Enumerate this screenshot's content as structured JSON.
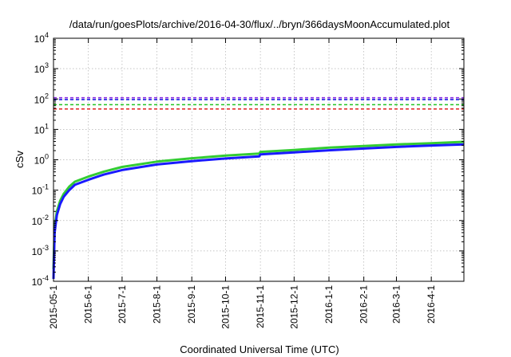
{
  "chart_data": {
    "type": "line",
    "title": "/data/run/goesPlots/archive/2016-04-30/flux/../bryn/366daysMoonAccumulated.plot",
    "xlabel": "Coordinated Universal Time (UTC)",
    "ylabel": "cSv",
    "yscale": "log",
    "ylim": [
      0.0001,
      10000
    ],
    "xlim": [
      "2015-05-01",
      "2016-04-30"
    ],
    "grid": true,
    "x_ticks": [
      "2015-05-1",
      "2015-6-1",
      "2015-7-1",
      "2015-8-1",
      "2015-9-1",
      "2015-10-1",
      "2015-11-1",
      "2015-12-1",
      "2016-1-1",
      "2016-2-1",
      "2016-3-1",
      "2016-4-1"
    ],
    "y_ticks": [
      {
        "value": 0.0001,
        "base": "10",
        "exp": "-4"
      },
      {
        "value": 0.001,
        "base": "10",
        "exp": "-3"
      },
      {
        "value": 0.01,
        "base": "10",
        "exp": "-2"
      },
      {
        "value": 0.1,
        "base": "10",
        "exp": "-1"
      },
      {
        "value": 1,
        "base": "10",
        "exp": "0"
      },
      {
        "value": 10,
        "base": "10",
        "exp": "1"
      },
      {
        "value": 100,
        "base": "10",
        "exp": "2"
      },
      {
        "value": 1000,
        "base": "10",
        "exp": "3"
      },
      {
        "value": 10000,
        "base": "10",
        "exp": "4"
      }
    ],
    "thresholds": [
      {
        "value": 110,
        "color": "#8a2be2"
      },
      {
        "value": 96,
        "color": "#1e1ee6"
      },
      {
        "value": 65,
        "color": "#22c322"
      },
      {
        "value": 47,
        "color": "#e02020"
      }
    ],
    "series": [
      {
        "color": "#33cc33",
        "x": [
          "2015-05-01",
          "2015-05-02",
          "2015-05-04",
          "2015-05-07",
          "2015-05-10",
          "2015-05-15",
          "2015-05-20",
          "2015-06-01",
          "2015-06-15",
          "2015-07-01",
          "2015-08-01",
          "2015-09-01",
          "2015-10-01",
          "2015-10-31",
          "2015-11-01",
          "2015-12-01",
          "2016-01-01",
          "2016-02-01",
          "2016-03-01",
          "2016-04-01",
          "2016-04-30"
        ],
        "y": [
          0.00025,
          0.006,
          0.02,
          0.045,
          0.075,
          0.13,
          0.19,
          0.28,
          0.41,
          0.58,
          0.87,
          1.12,
          1.37,
          1.6,
          1.82,
          2.1,
          2.5,
          2.85,
          3.2,
          3.5,
          3.9
        ]
      },
      {
        "color": "#1a1aff",
        "x": [
          "2015-05-01",
          "2015-05-02",
          "2015-05-04",
          "2015-05-07",
          "2015-05-10",
          "2015-05-15",
          "2015-05-20",
          "2015-06-01",
          "2015-06-15",
          "2015-07-01",
          "2015-08-01",
          "2015-09-01",
          "2015-10-01",
          "2015-10-31",
          "2015-11-01",
          "2015-12-01",
          "2016-01-01",
          "2016-02-01",
          "2016-03-01",
          "2016-04-01",
          "2016-04-30"
        ],
        "y": [
          0.00012,
          0.004,
          0.015,
          0.035,
          0.06,
          0.1,
          0.15,
          0.22,
          0.33,
          0.46,
          0.7,
          0.9,
          1.1,
          1.3,
          1.5,
          1.75,
          2.05,
          2.35,
          2.65,
          2.95,
          3.2
        ]
      }
    ]
  }
}
